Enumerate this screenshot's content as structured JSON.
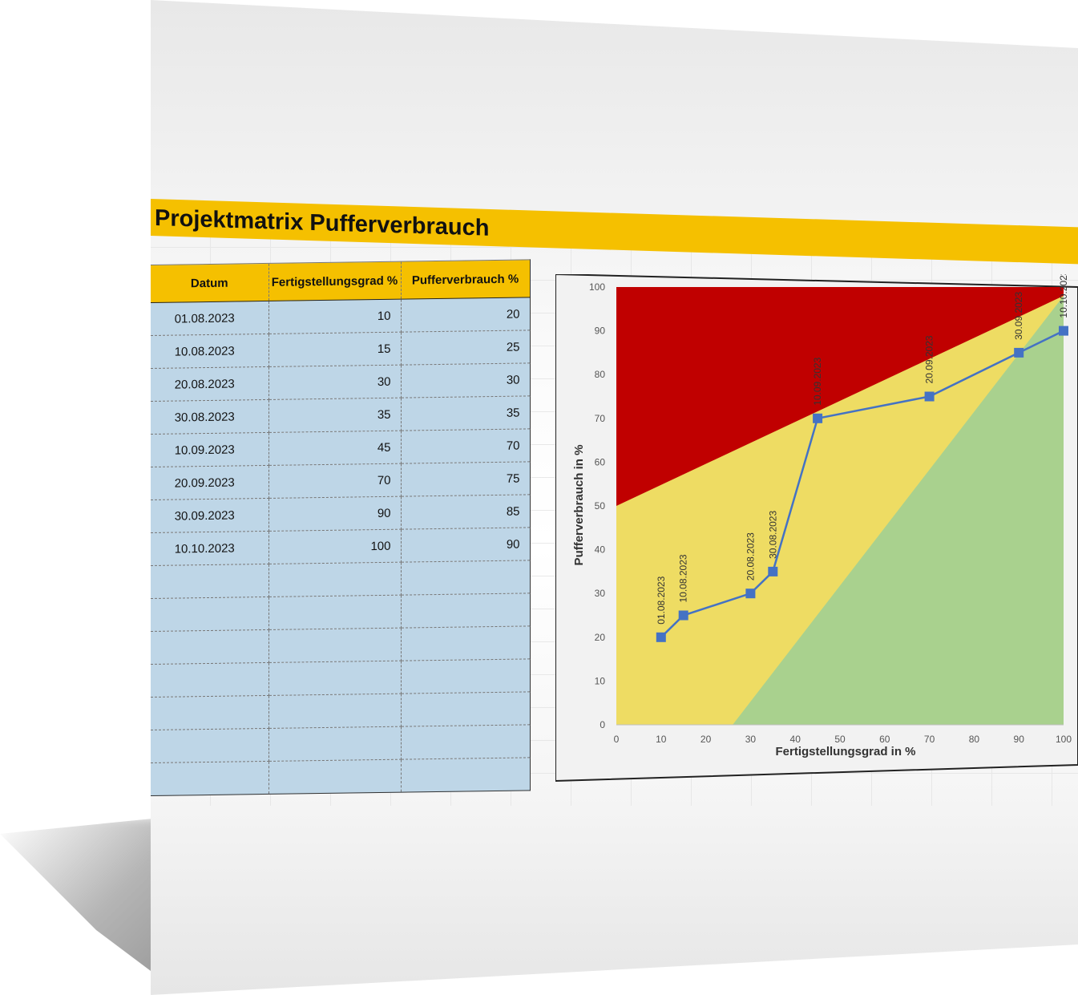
{
  "title": "Projektmatrix Pufferverbrauch",
  "table": {
    "headers": [
      "Datum",
      "Fertigstellungsgrad %",
      "Pufferverbrauch %"
    ],
    "rows": [
      [
        "01.08.2023",
        "10",
        "20"
      ],
      [
        "10.08.2023",
        "15",
        "25"
      ],
      [
        "20.08.2023",
        "30",
        "30"
      ],
      [
        "30.08.2023",
        "35",
        "35"
      ],
      [
        "10.09.2023",
        "45",
        "70"
      ],
      [
        "20.09.2023",
        "70",
        "75"
      ],
      [
        "30.09.2023",
        "90",
        "85"
      ],
      [
        "10.10.2023",
        "100",
        "90"
      ]
    ],
    "empty_rows": 7
  },
  "colors": {
    "title_band": "#f5c000",
    "table_body": "#bed6e7",
    "zone_red": "#c00000",
    "zone_yellow": "#eedc63",
    "zone_green": "#a9d18e",
    "series": "#4472c4"
  },
  "chart_data": {
    "type": "line",
    "xlabel": "Fertigstellungsgrad in %",
    "ylabel": "Pufferverbrauch in %",
    "xlim": [
      0,
      100
    ],
    "ylim": [
      0,
      100
    ],
    "xticks": [
      "0",
      "10",
      "20",
      "30",
      "40",
      "50",
      "60",
      "70",
      "80",
      "90",
      "100"
    ],
    "yticks": [
      "0",
      "10",
      "20",
      "30",
      "40",
      "50",
      "60",
      "70",
      "80",
      "90",
      "100"
    ],
    "zones": [
      {
        "color": "red",
        "boundary_from": [
          0,
          50
        ],
        "boundary_to": [
          100,
          98
        ]
      },
      {
        "color": "yellow"
      },
      {
        "color": "green",
        "boundary_from": [
          26,
          0
        ],
        "boundary_to": [
          100,
          98
        ]
      }
    ],
    "points": [
      {
        "x": 10,
        "y": 20,
        "label": "01.08.2023"
      },
      {
        "x": 15,
        "y": 25,
        "label": "10.08.2023"
      },
      {
        "x": 30,
        "y": 30,
        "label": "20.08.2023"
      },
      {
        "x": 35,
        "y": 35,
        "label": "30.08.2023"
      },
      {
        "x": 45,
        "y": 70,
        "label": "10.09.2023"
      },
      {
        "x": 70,
        "y": 75,
        "label": "20.09.2023"
      },
      {
        "x": 90,
        "y": 85,
        "label": "30.09.2023"
      },
      {
        "x": 100,
        "y": 90,
        "label": "10.10.2023"
      }
    ]
  }
}
